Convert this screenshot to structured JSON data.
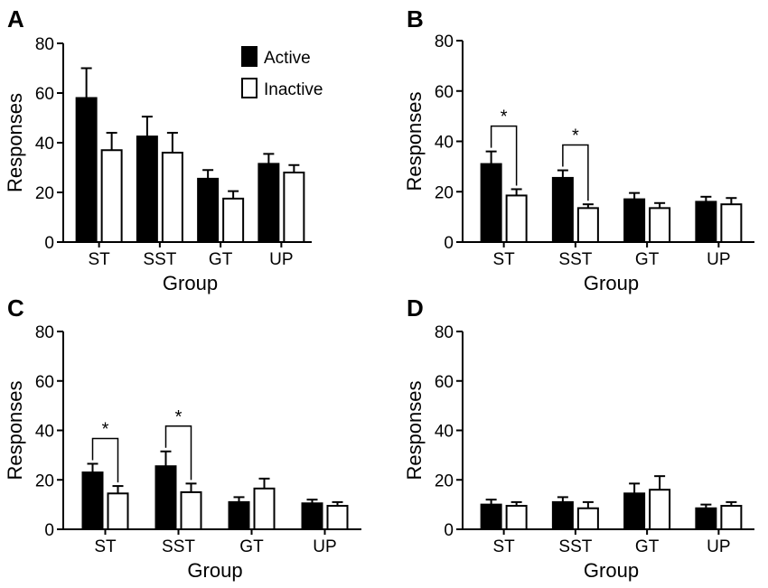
{
  "legend": {
    "active_label": "Active",
    "inactive_label": "Inactive",
    "active_color": "#000000",
    "inactive_color": "#ffffff"
  },
  "chart_data": [
    {
      "panel": "A",
      "type": "bar",
      "categories": [
        "ST",
        "SST",
        "GT",
        "UP"
      ],
      "series": [
        {
          "name": "Active",
          "values": [
            58,
            42.5,
            25.5,
            31.5
          ],
          "errors": [
            12,
            8,
            3.5,
            4
          ]
        },
        {
          "name": "Inactive",
          "values": [
            37,
            36,
            17.5,
            28
          ],
          "errors": [
            7,
            8,
            3,
            3
          ]
        }
      ],
      "xlabel": "Group",
      "ylabel": "Responses",
      "ylim": [
        0,
        80
      ],
      "yticks": [
        0,
        20,
        40,
        60,
        80
      ],
      "significance": []
    },
    {
      "panel": "B",
      "type": "bar",
      "categories": [
        "ST",
        "SST",
        "GT",
        "UP"
      ],
      "series": [
        {
          "name": "Active",
          "values": [
            31,
            25.5,
            17,
            16
          ],
          "errors": [
            5,
            3,
            2.5,
            2
          ]
        },
        {
          "name": "Inactive",
          "values": [
            18.5,
            13.5,
            13.5,
            15
          ],
          "errors": [
            2.5,
            1.5,
            2,
            2.5
          ]
        }
      ],
      "xlabel": "Group",
      "ylabel": "Responses",
      "ylim": [
        0,
        80
      ],
      "yticks": [
        0,
        20,
        40,
        60,
        80
      ],
      "significance": [
        {
          "category": "ST",
          "label": "*"
        },
        {
          "category": "SST",
          "label": "*"
        }
      ]
    },
    {
      "panel": "C",
      "type": "bar",
      "categories": [
        "ST",
        "SST",
        "GT",
        "UP"
      ],
      "series": [
        {
          "name": "Active",
          "values": [
            23,
            25.5,
            11,
            10.5
          ],
          "errors": [
            3.5,
            6,
            2,
            1.5
          ]
        },
        {
          "name": "Inactive",
          "values": [
            14.5,
            15,
            16.5,
            9.5
          ],
          "errors": [
            3,
            3.5,
            4,
            1.5
          ]
        }
      ],
      "xlabel": "Group",
      "ylabel": "Responses",
      "ylim": [
        0,
        80
      ],
      "yticks": [
        0,
        20,
        40,
        60,
        80
      ],
      "significance": [
        {
          "category": "ST",
          "label": "*"
        },
        {
          "category": "SST",
          "label": "*"
        }
      ]
    },
    {
      "panel": "D",
      "type": "bar",
      "categories": [
        "ST",
        "SST",
        "GT",
        "UP"
      ],
      "series": [
        {
          "name": "Active",
          "values": [
            10,
            11,
            14.5,
            8.5
          ],
          "errors": [
            2,
            2,
            4,
            1.5
          ]
        },
        {
          "name": "Inactive",
          "values": [
            9.5,
            8.5,
            16,
            9.5
          ],
          "errors": [
            1.5,
            2.5,
            5.5,
            1.5
          ]
        }
      ],
      "xlabel": "Group",
      "ylabel": "Responses",
      "ylim": [
        0,
        80
      ],
      "yticks": [
        0,
        20,
        40,
        60,
        80
      ],
      "significance": []
    }
  ]
}
